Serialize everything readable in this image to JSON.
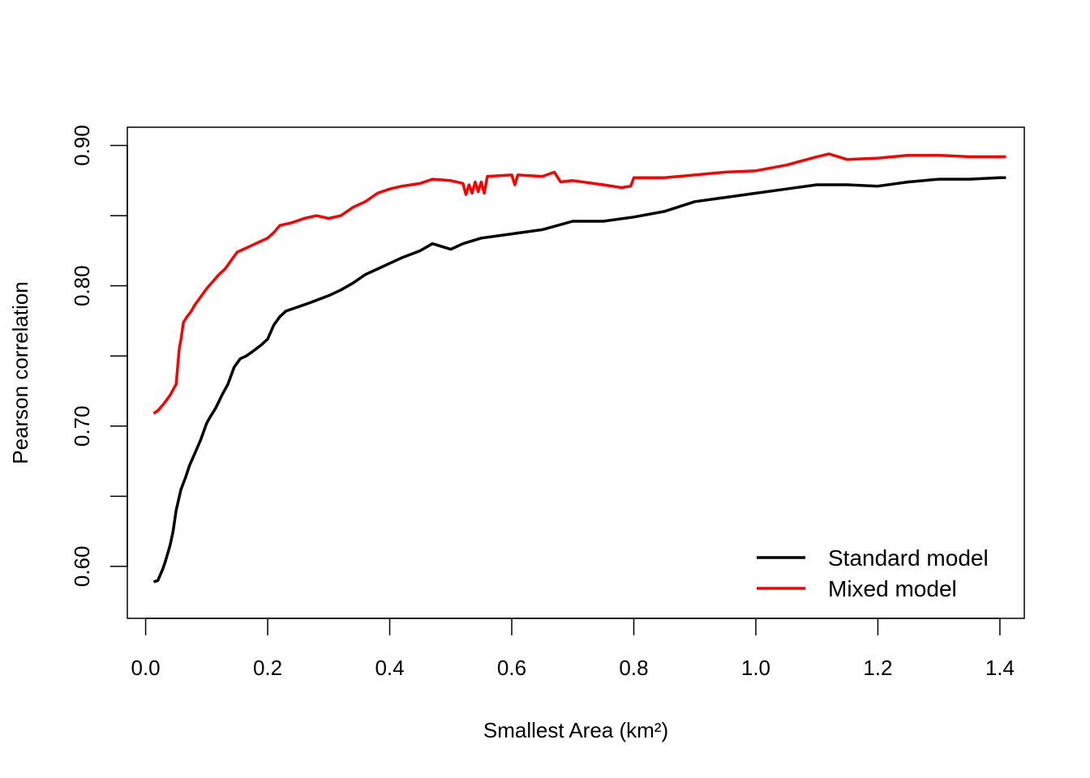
{
  "chart_data": {
    "type": "line",
    "title": "",
    "xlabel": "Smallest Area (km²)",
    "ylabel": "Pearson correlation",
    "xlim": [
      -0.03,
      1.44
    ],
    "ylim": [
      0.563,
      0.913
    ],
    "x_ticks": [
      0.0,
      0.2,
      0.4,
      0.6,
      0.8,
      1.0,
      1.2,
      1.4
    ],
    "x_tick_labels": [
      "0.0",
      "0.2",
      "0.4",
      "0.6",
      "0.8",
      "1.0",
      "1.2",
      "1.4"
    ],
    "y_ticks": [
      0.6,
      0.65,
      0.7,
      0.75,
      0.8,
      0.85,
      0.9
    ],
    "y_tick_labels": [
      "0.60",
      "",
      "0.70",
      "",
      "0.80",
      "",
      "0.90"
    ],
    "grid": false,
    "legend_position": "bottom-right",
    "series": [
      {
        "name": "Standard model",
        "color": "#000000",
        "x": [
          0.013,
          0.02,
          0.028,
          0.032,
          0.04,
          0.045,
          0.05,
          0.058,
          0.065,
          0.072,
          0.08,
          0.09,
          0.1,
          0.105,
          0.115,
          0.125,
          0.135,
          0.145,
          0.155,
          0.165,
          0.175,
          0.19,
          0.2,
          0.21,
          0.22,
          0.23,
          0.25,
          0.27,
          0.3,
          0.32,
          0.34,
          0.36,
          0.38,
          0.4,
          0.42,
          0.45,
          0.47,
          0.5,
          0.52,
          0.55,
          0.6,
          0.65,
          0.7,
          0.75,
          0.8,
          0.85,
          0.9,
          0.95,
          1.0,
          1.05,
          1.1,
          1.15,
          1.2,
          1.25,
          1.3,
          1.35,
          1.4,
          1.41
        ],
        "y": [
          0.589,
          0.59,
          0.598,
          0.603,
          0.615,
          0.625,
          0.64,
          0.655,
          0.663,
          0.672,
          0.68,
          0.69,
          0.702,
          0.706,
          0.713,
          0.722,
          0.73,
          0.742,
          0.748,
          0.75,
          0.753,
          0.758,
          0.762,
          0.772,
          0.778,
          0.782,
          0.785,
          0.788,
          0.793,
          0.797,
          0.802,
          0.808,
          0.812,
          0.816,
          0.82,
          0.825,
          0.83,
          0.826,
          0.83,
          0.834,
          0.837,
          0.84,
          0.846,
          0.846,
          0.849,
          0.853,
          0.86,
          0.863,
          0.866,
          0.869,
          0.872,
          0.872,
          0.871,
          0.874,
          0.876,
          0.876,
          0.877,
          0.877
        ]
      },
      {
        "name": "Mixed model",
        "color": "#ff0000",
        "x": [
          0.013,
          0.02,
          0.03,
          0.04,
          0.05,
          0.055,
          0.058,
          0.062,
          0.068,
          0.075,
          0.08,
          0.09,
          0.1,
          0.11,
          0.12,
          0.13,
          0.14,
          0.15,
          0.16,
          0.17,
          0.18,
          0.2,
          0.21,
          0.22,
          0.24,
          0.26,
          0.28,
          0.3,
          0.32,
          0.34,
          0.36,
          0.38,
          0.4,
          0.42,
          0.45,
          0.47,
          0.5,
          0.52,
          0.525,
          0.53,
          0.535,
          0.54,
          0.545,
          0.55,
          0.555,
          0.56,
          0.6,
          0.605,
          0.61,
          0.65,
          0.67,
          0.68,
          0.7,
          0.75,
          0.78,
          0.795,
          0.8,
          0.85,
          0.9,
          0.95,
          1.0,
          1.05,
          1.1,
          1.12,
          1.15,
          1.2,
          1.25,
          1.3,
          1.35,
          1.4,
          1.41
        ],
        "y": [
          0.709,
          0.711,
          0.716,
          0.722,
          0.73,
          0.755,
          0.762,
          0.774,
          0.778,
          0.782,
          0.786,
          0.792,
          0.798,
          0.803,
          0.808,
          0.812,
          0.818,
          0.824,
          0.826,
          0.828,
          0.83,
          0.834,
          0.838,
          0.843,
          0.845,
          0.848,
          0.85,
          0.848,
          0.85,
          0.856,
          0.86,
          0.866,
          0.869,
          0.871,
          0.873,
          0.876,
          0.875,
          0.873,
          0.865,
          0.872,
          0.866,
          0.874,
          0.867,
          0.874,
          0.866,
          0.878,
          0.879,
          0.872,
          0.879,
          0.878,
          0.881,
          0.874,
          0.875,
          0.872,
          0.87,
          0.871,
          0.877,
          0.877,
          0.879,
          0.881,
          0.882,
          0.886,
          0.892,
          0.894,
          0.89,
          0.891,
          0.893,
          0.893,
          0.892,
          0.892,
          0.892
        ]
      }
    ]
  }
}
